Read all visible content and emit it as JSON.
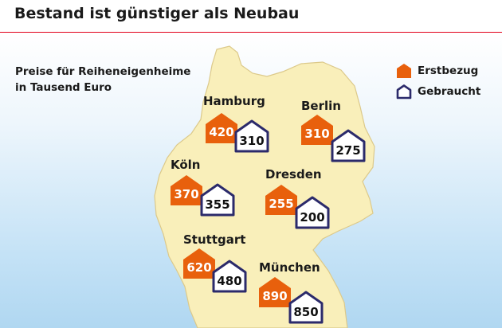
{
  "title": "Bestand ist günstiger als Neubau",
  "subtitle": [
    "Preise für Reiheneigenheime",
    "in Tausend Euro"
  ],
  "legend": [
    {
      "label": "Erstbezug",
      "style": "filled"
    },
    {
      "label": "Gebraucht",
      "style": "outline"
    }
  ],
  "colors": {
    "erstbezug": "#e8600c",
    "gebraucht_border": "#2b2a6b",
    "map_fill": "#f9efba",
    "map_border": "#dcc98a",
    "accent_line": "#e2001a"
  },
  "cities": [
    {
      "name": "Hamburg",
      "erstbezug": "420",
      "gebraucht": "310"
    },
    {
      "name": "Berlin",
      "erstbezug": "310",
      "gebraucht": "275"
    },
    {
      "name": "Köln",
      "erstbezug": "370",
      "gebraucht": "355"
    },
    {
      "name": "Dresden",
      "erstbezug": "255",
      "gebraucht": "200"
    },
    {
      "name": "Stuttgart",
      "erstbezug": "620",
      "gebraucht": "480"
    },
    {
      "name": "München",
      "erstbezug": "890",
      "gebraucht": "850"
    }
  ]
}
